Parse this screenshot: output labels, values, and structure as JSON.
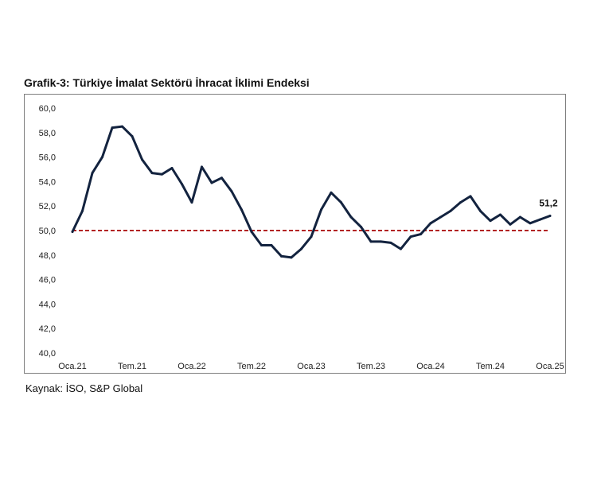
{
  "chart_data": {
    "type": "line",
    "title": "Grafik-3: Türkiye İmalat Sektörü İhracat İklimi Endeksi",
    "source": "Kaynak: İSO, S&P Global",
    "xlabel": "",
    "ylabel": "",
    "ylim": [
      40,
      60
    ],
    "y_ticks": [
      "40,0",
      "42,0",
      "44,0",
      "46,0",
      "48,0",
      "50,0",
      "52,0",
      "54,0",
      "56,0",
      "58,0",
      "60,0"
    ],
    "x_tick_labels": [
      {
        "label": "Oca.21",
        "index": 0
      },
      {
        "label": "Tem.21",
        "index": 6
      },
      {
        "label": "Oca.22",
        "index": 12
      },
      {
        "label": "Tem.22",
        "index": 18
      },
      {
        "label": "Oca.23",
        "index": 24
      },
      {
        "label": "Tem.23",
        "index": 30
      },
      {
        "label": "Oca.24",
        "index": 36
      },
      {
        "label": "Tem.24",
        "index": 42
      },
      {
        "label": "Oca.25",
        "index": 48
      }
    ],
    "reference_line": 50,
    "end_label": "51,2",
    "series": [
      {
        "name": "Türkiye İmalat Sektörü İhracat İklimi Endeksi",
        "values": [
          49.9,
          51.6,
          54.7,
          56.0,
          58.4,
          58.5,
          57.7,
          55.8,
          54.7,
          54.6,
          55.1,
          53.8,
          52.3,
          55.2,
          53.9,
          54.3,
          53.2,
          51.7,
          49.9,
          48.8,
          48.8,
          47.9,
          47.8,
          48.5,
          49.5,
          51.7,
          53.1,
          52.3,
          51.1,
          50.3,
          49.1,
          49.1,
          49.0,
          48.5,
          49.5,
          49.7,
          50.6,
          51.1,
          51.6,
          52.3,
          52.8,
          51.6,
          50.8,
          51.3,
          50.5,
          51.1,
          50.6,
          50.9,
          51.2
        ]
      }
    ],
    "colors": {
      "line": "#13233f",
      "reference": "#b22222"
    }
  }
}
